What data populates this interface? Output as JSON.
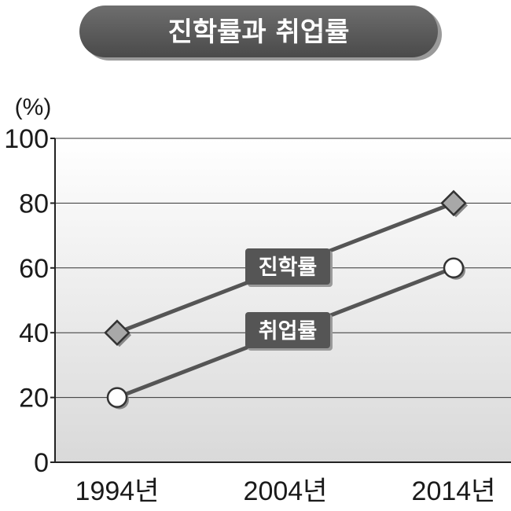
{
  "title": "진학률과 취업률",
  "colors": {
    "title_bg": "#5a5a5a",
    "line": "#555555",
    "label_bg": "#555555",
    "diamond_fill": "#a8a8a8",
    "circle_fill": "#ffffff",
    "grid": "#333333",
    "axis": "#222222"
  },
  "chart_data": {
    "type": "line",
    "title": "진학률과 취업률",
    "unit_label": "(%)",
    "categories": [
      "1994년",
      "2004년",
      "2014년"
    ],
    "ylim": [
      0,
      100
    ],
    "y_ticks": [
      "0",
      "20",
      "40",
      "60",
      "80",
      "100"
    ],
    "grid": true,
    "series": [
      {
        "name": "진학률",
        "marker": "diamond",
        "values": [
          40,
          60,
          80
        ]
      },
      {
        "name": "취업률",
        "marker": "circle",
        "values": [
          20,
          40,
          60
        ]
      }
    ]
  }
}
